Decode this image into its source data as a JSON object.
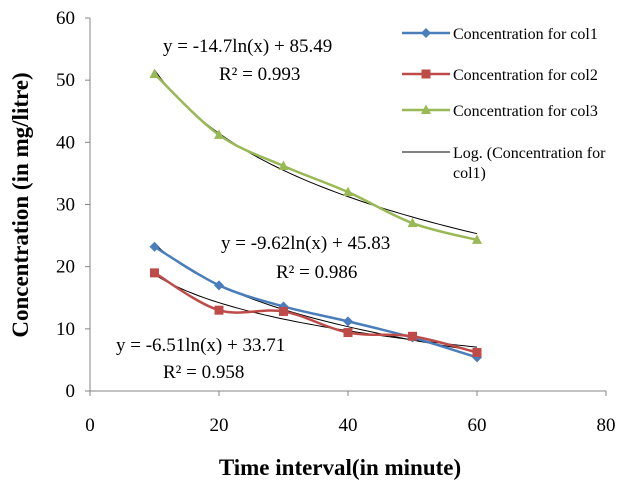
{
  "chart_data": {
    "type": "line",
    "title": "",
    "xlabel": "Time interval(in minute)",
    "ylabel": "Concentration (in mg/litre)",
    "xlim": [
      0,
      80
    ],
    "ylim": [
      0,
      60
    ],
    "xticks": [
      "0",
      "20",
      "40",
      "60",
      "80"
    ],
    "yticks": [
      "0",
      "10",
      "20",
      "30",
      "40",
      "50",
      "60"
    ],
    "legend_position": "right",
    "series": [
      {
        "name": "Concentration for col1",
        "color": "#4a7ebb",
        "marker": "diamond",
        "x": [
          10,
          20,
          30,
          40,
          50,
          60
        ],
        "y": [
          23.2,
          17.0,
          13.6,
          11.2,
          8.6,
          5.4
        ]
      },
      {
        "name": "Concentration for col2",
        "color": "#be4b48",
        "marker": "square",
        "x": [
          10,
          20,
          30,
          40,
          50,
          60
        ],
        "y": [
          19.0,
          13.0,
          12.8,
          9.4,
          8.8,
          6.2
        ]
      },
      {
        "name": "Concentration for col3",
        "color": "#98b954",
        "marker": "triangle",
        "x": [
          10,
          20,
          30,
          40,
          50,
          60
        ],
        "y": [
          51.0,
          41.2,
          36.2,
          32.0,
          27.0,
          24.3
        ]
      }
    ],
    "trendlines": [
      {
        "name": "Log. (Concentration for col1)",
        "in_legend": true,
        "color": "#000000",
        "a": -9.62,
        "b": 45.83
      },
      {
        "name": "",
        "in_legend": false,
        "color": "#000000",
        "a": -6.51,
        "b": 33.71
      },
      {
        "name": "",
        "in_legend": false,
        "color": "#000000",
        "a": -14.7,
        "b": 85.49
      }
    ],
    "annotations": [
      {
        "equation": "y = -14.7ln(x) + 85.49",
        "r2": "R² = 0.993"
      },
      {
        "equation": "y = -9.62ln(x) + 45.83",
        "r2": "R² = 0.986"
      },
      {
        "equation": "y = -6.51ln(x) + 33.71",
        "r2": "R² = 0.958"
      }
    ],
    "legend_entries": [
      {
        "label_lines": [
          "Concentration for col1"
        ]
      },
      {
        "label_lines": [
          "Concentration for col2"
        ]
      },
      {
        "label_lines": [
          "Concentration for col3"
        ]
      },
      {
        "label_lines": [
          "Log. (Concentration for",
          "col1)"
        ]
      }
    ]
  }
}
